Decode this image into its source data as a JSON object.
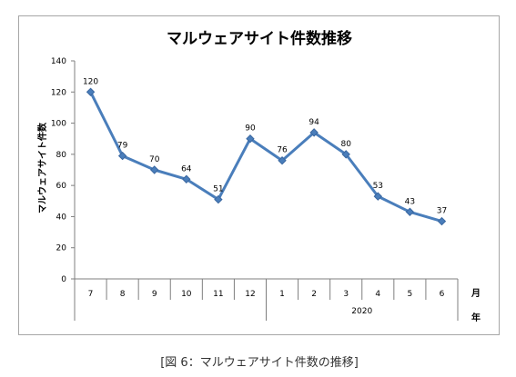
{
  "caption": "[図 6：マルウェアサイト件数の推移]",
  "chart_data": {
    "type": "line",
    "title": "マルウェアサイト件数推移",
    "ylabel": "マルウェアサイト件数",
    "xlabel": "月",
    "year_label": "年",
    "categories": [
      "7",
      "8",
      "9",
      "10",
      "11",
      "12",
      "1",
      "2",
      "3",
      "4",
      "5",
      "6"
    ],
    "year_groups": [
      {
        "label": "2020",
        "months": [
          "1",
          "2",
          "3",
          "4",
          "5",
          "6"
        ]
      }
    ],
    "series": [
      {
        "values": [
          120,
          79,
          70,
          64,
          51,
          90,
          76,
          94,
          80,
          53,
          43,
          37
        ],
        "color": "#4a7ebb"
      }
    ],
    "data_labels": true,
    "ylim": [
      0,
      140
    ],
    "yticks": [
      0,
      20,
      40,
      60,
      80,
      100,
      120,
      140
    ],
    "grid": false,
    "legend": "none"
  }
}
